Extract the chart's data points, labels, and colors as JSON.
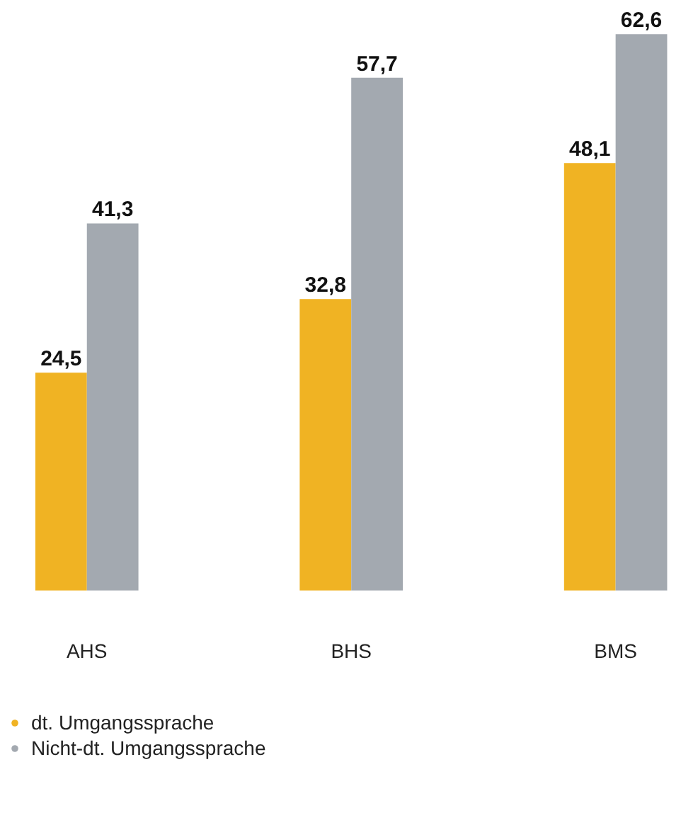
{
  "chart_data": {
    "type": "bar",
    "categories": [
      "AHS",
      "BHS",
      "BMS"
    ],
    "series": [
      {
        "name": "dt. Umgangssprache",
        "color": "#f0b323",
        "values": [
          24.5,
          32.8,
          48.1
        ],
        "value_labels": [
          "24,5",
          "32,8",
          "48,1"
        ]
      },
      {
        "name": "Nicht-dt. Umgangssprache",
        "color": "#a3a9b0",
        "values": [
          41.3,
          57.7,
          62.6
        ],
        "value_labels": [
          "41,3",
          "57,7",
          "62,6"
        ]
      }
    ],
    "tick_labels": "x",
    "grid": false,
    "legend": "bottom left"
  }
}
